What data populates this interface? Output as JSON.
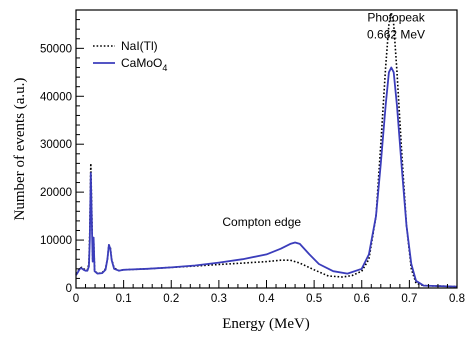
{
  "chart_data": {
    "type": "line",
    "title": "",
    "xlabel": "Energy (MeV)",
    "ylabel": "Number of events (a.u.)",
    "xlim": [
      0,
      0.8
    ],
    "ylim": [
      0,
      58000
    ],
    "x_ticks": [
      {
        "value": 0,
        "label": "0"
      },
      {
        "value": 0.1,
        "label": "0.1"
      },
      {
        "value": 0.2,
        "label": "0.2"
      },
      {
        "value": 0.3,
        "label": "0.3"
      },
      {
        "value": 0.4,
        "label": "0.4"
      },
      {
        "value": 0.5,
        "label": "0.5"
      },
      {
        "value": 0.6,
        "label": "0.6"
      },
      {
        "value": 0.7,
        "label": "0.7"
      },
      {
        "value": 0.8,
        "label": "0.8"
      }
    ],
    "y_ticks": [
      {
        "value": 0,
        "label": "0"
      },
      {
        "value": 10000,
        "label": "10000"
      },
      {
        "value": 20000,
        "label": "20000"
      },
      {
        "value": 30000,
        "label": "30000"
      },
      {
        "value": 40000,
        "label": "40000"
      },
      {
        "value": 50000,
        "label": "50000"
      }
    ],
    "grid": false,
    "legend_position": "top-left",
    "annotations": [
      {
        "text": "Photopeak",
        "x": 0.672,
        "y": 55600
      },
      {
        "text": "0.662 MeV",
        "x": 0.672,
        "y": 52100
      },
      {
        "text": "Compton edge",
        "x": 0.39,
        "y": 12900
      }
    ],
    "series": [
      {
        "name": "NaI(Tl)",
        "color": "#000000",
        "style": "dotted",
        "points": [
          [
            0.0,
            3000
          ],
          [
            0.004,
            3500
          ],
          [
            0.008,
            4100
          ],
          [
            0.012,
            4300
          ],
          [
            0.016,
            4000
          ],
          [
            0.02,
            3800
          ],
          [
            0.024,
            3800
          ],
          [
            0.027,
            5000
          ],
          [
            0.029,
            12000
          ],
          [
            0.031,
            26000
          ],
          [
            0.033,
            17000
          ],
          [
            0.035,
            6000
          ],
          [
            0.037,
            10500
          ],
          [
            0.039,
            3800
          ],
          [
            0.045,
            3000
          ],
          [
            0.055,
            3200
          ],
          [
            0.062,
            4000
          ],
          [
            0.066,
            6000
          ],
          [
            0.069,
            9000
          ],
          [
            0.072,
            8500
          ],
          [
            0.075,
            6000
          ],
          [
            0.08,
            4200
          ],
          [
            0.09,
            3600
          ],
          [
            0.1,
            3800
          ],
          [
            0.15,
            4000
          ],
          [
            0.2,
            4300
          ],
          [
            0.25,
            4600
          ],
          [
            0.3,
            4900
          ],
          [
            0.35,
            5200
          ],
          [
            0.4,
            5500
          ],
          [
            0.43,
            5800
          ],
          [
            0.45,
            5800
          ],
          [
            0.47,
            5200
          ],
          [
            0.5,
            3800
          ],
          [
            0.53,
            2500
          ],
          [
            0.56,
            2300
          ],
          [
            0.58,
            2600
          ],
          [
            0.6,
            3500
          ],
          [
            0.615,
            6000
          ],
          [
            0.63,
            15000
          ],
          [
            0.64,
            30000
          ],
          [
            0.65,
            46000
          ],
          [
            0.657,
            55000
          ],
          [
            0.662,
            57500
          ],
          [
            0.667,
            55000
          ],
          [
            0.674,
            45000
          ],
          [
            0.684,
            28000
          ],
          [
            0.694,
            13000
          ],
          [
            0.704,
            4000
          ],
          [
            0.714,
            1000
          ],
          [
            0.73,
            500
          ],
          [
            0.8,
            300
          ]
        ]
      },
      {
        "name": "CaMoO4",
        "color": "#3b3dbb",
        "style": "solid",
        "points": [
          [
            0.0,
            2700
          ],
          [
            0.004,
            3300
          ],
          [
            0.008,
            4000
          ],
          [
            0.012,
            4100
          ],
          [
            0.016,
            3800
          ],
          [
            0.02,
            3600
          ],
          [
            0.024,
            3600
          ],
          [
            0.027,
            4500
          ],
          [
            0.029,
            10000
          ],
          [
            0.031,
            24000
          ],
          [
            0.033,
            15000
          ],
          [
            0.035,
            5500
          ],
          [
            0.037,
            10500
          ],
          [
            0.039,
            3500
          ],
          [
            0.045,
            3000
          ],
          [
            0.055,
            3100
          ],
          [
            0.062,
            3800
          ],
          [
            0.066,
            6000
          ],
          [
            0.069,
            9000
          ],
          [
            0.072,
            8200
          ],
          [
            0.075,
            5800
          ],
          [
            0.08,
            4000
          ],
          [
            0.09,
            3600
          ],
          [
            0.1,
            3800
          ],
          [
            0.15,
            4000
          ],
          [
            0.2,
            4300
          ],
          [
            0.25,
            4700
          ],
          [
            0.3,
            5300
          ],
          [
            0.35,
            6000
          ],
          [
            0.4,
            7000
          ],
          [
            0.43,
            8200
          ],
          [
            0.45,
            9200
          ],
          [
            0.46,
            9500
          ],
          [
            0.47,
            9200
          ],
          [
            0.49,
            7000
          ],
          [
            0.51,
            5000
          ],
          [
            0.54,
            3500
          ],
          [
            0.57,
            3000
          ],
          [
            0.6,
            4000
          ],
          [
            0.615,
            7000
          ],
          [
            0.63,
            15000
          ],
          [
            0.64,
            26000
          ],
          [
            0.65,
            38000
          ],
          [
            0.657,
            45000
          ],
          [
            0.662,
            46000
          ],
          [
            0.667,
            45000
          ],
          [
            0.674,
            38000
          ],
          [
            0.684,
            25000
          ],
          [
            0.694,
            13000
          ],
          [
            0.704,
            5000
          ],
          [
            0.714,
            1500
          ],
          [
            0.73,
            500
          ],
          [
            0.8,
            300
          ]
        ]
      }
    ]
  }
}
